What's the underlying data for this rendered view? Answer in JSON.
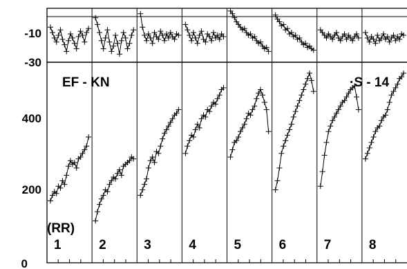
{
  "chart_data": {
    "type": "scatter",
    "top_panel": {
      "y_ticks": [
        "-10",
        "-30"
      ],
      "ylim": [
        -30,
        10
      ],
      "series": [
        {
          "panel": 1,
          "values": [
            -4,
            -8,
            -12,
            -15,
            -10,
            -6,
            -13,
            -17,
            -22,
            -14,
            -9,
            -12,
            -16,
            -20,
            -11,
            -7,
            -10,
            -15,
            -8,
            -5
          ]
        },
        {
          "panel": 2,
          "values": [
            3,
            -2,
            -8,
            -14,
            -20,
            -12,
            -6,
            -15,
            -22,
            -18,
            -10,
            -16,
            -24,
            -14,
            -8,
            -12,
            -20,
            -16,
            -10,
            -6
          ]
        },
        {
          "panel": 3,
          "values": [
            6,
            -4,
            -10,
            -14,
            -9,
            -12,
            -16,
            -8,
            -11,
            -13,
            -7,
            -10,
            -14,
            -9,
            -12,
            -8,
            -11,
            -13,
            -9,
            -10
          ]
        },
        {
          "panel": 4,
          "values": [
            -2,
            -6,
            -10,
            -14,
            -8,
            -12,
            -16,
            -10,
            -7,
            -13,
            -15,
            -9,
            -11,
            -14,
            -8,
            -12,
            -10,
            -13,
            -9,
            -11
          ]
        },
        {
          "panel": 5,
          "values": [
            8,
            6,
            3,
            0,
            -2,
            -4,
            -6,
            -5,
            -8,
            -10,
            -9,
            -12,
            -11,
            -14,
            -16,
            -15,
            -18,
            -20,
            -19,
            -22
          ]
        },
        {
          "panel": 6,
          "values": [
            5,
            2,
            0,
            -3,
            -2,
            -6,
            -5,
            -9,
            -8,
            -11,
            -10,
            -13,
            -12,
            -15,
            -17,
            -16,
            -19,
            -18,
            -20,
            -21
          ]
        },
        {
          "panel": 7,
          "values": [
            -6,
            -8,
            -10,
            -12,
            -9,
            -11,
            -13,
            -10,
            -8,
            -12,
            -14,
            -11,
            -9,
            -13,
            -10,
            -12,
            -14,
            -11,
            -9,
            -12
          ]
        },
        {
          "panel": 8,
          "values": [
            -8,
            -12,
            -15,
            -11,
            -13,
            -16,
            -10,
            -14,
            -12,
            -9,
            -13,
            -11,
            -15,
            -12,
            -10,
            -14,
            -11,
            -13,
            -9,
            -10
          ]
        }
      ]
    },
    "bottom_panel": {
      "y_ticks": [
        "0",
        "200",
        "400"
      ],
      "ylim": [
        0,
        550
      ],
      "series": [
        {
          "panel": 1,
          "values": [
            170,
            185,
            195,
            190,
            210,
            205,
            225,
            215,
            240,
            265,
            280,
            270,
            275,
            260,
            285,
            290,
            300,
            310,
            320,
            345
          ]
        },
        {
          "panel": 2,
          "values": [
            115,
            140,
            160,
            175,
            185,
            200,
            195,
            215,
            225,
            235,
            230,
            245,
            255,
            240,
            265,
            270,
            275,
            280,
            290,
            285
          ]
        },
        {
          "panel": 3,
          "values": [
            185,
            200,
            215,
            230,
            260,
            280,
            290,
            275,
            305,
            300,
            320,
            340,
            355,
            365,
            375,
            385,
            395,
            405,
            410,
            420
          ]
        },
        {
          "panel": 4,
          "values": [
            300,
            320,
            335,
            350,
            345,
            365,
            380,
            370,
            395,
            405,
            400,
            420,
            415,
            430,
            440,
            435,
            450,
            460,
            475,
            480
          ]
        },
        {
          "panel": 5,
          "values": [
            290,
            310,
            330,
            335,
            345,
            360,
            370,
            380,
            395,
            410,
            405,
            420,
            430,
            450,
            465,
            475,
            460,
            440,
            420,
            360
          ]
        },
        {
          "panel": 6,
          "values": [
            200,
            225,
            260,
            300,
            320,
            335,
            350,
            365,
            380,
            400,
            415,
            430,
            445,
            460,
            475,
            490,
            505,
            520,
            500,
            470
          ]
        },
        {
          "panel": 7,
          "values": [
            210,
            250,
            295,
            330,
            360,
            375,
            390,
            400,
            410,
            420,
            430,
            440,
            445,
            455,
            465,
            475,
            480,
            485,
            455,
            420
          ]
        },
        {
          "panel": 8,
          "values": [
            285,
            300,
            315,
            330,
            345,
            360,
            370,
            375,
            390,
            400,
            405,
            420,
            440,
            460,
            470,
            480,
            490,
            505,
            510,
            520
          ]
        }
      ]
    },
    "panel_labels": [
      "1",
      "2",
      "3",
      "4",
      "5",
      "6",
      "7",
      "8"
    ],
    "annotations": [
      "EF - KN",
      "·S - 14",
      "(RR)"
    ]
  }
}
